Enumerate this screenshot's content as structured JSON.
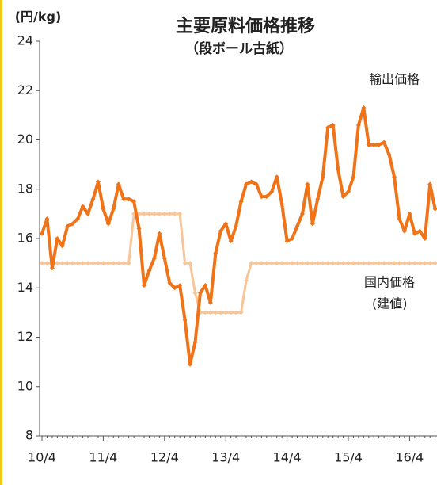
{
  "chart_data": {
    "type": "line",
    "title": "主要原料価格推移",
    "subtitle": "（段ボール古紙）",
    "y_label": "(円/kg)",
    "categories": [
      "10/4",
      null,
      null,
      null,
      null,
      null,
      null,
      null,
      null,
      null,
      null,
      null,
      "11/4",
      null,
      null,
      null,
      null,
      null,
      null,
      null,
      null,
      null,
      null,
      null,
      "12/4",
      null,
      null,
      null,
      null,
      null,
      null,
      null,
      null,
      null,
      null,
      null,
      "13/4",
      null,
      null,
      null,
      null,
      null,
      null,
      null,
      null,
      null,
      null,
      null,
      "14/4",
      null,
      null,
      null,
      null,
      null,
      null,
      null,
      null,
      null,
      null,
      null,
      "15/4",
      null,
      null,
      null,
      null,
      null,
      null,
      null,
      null,
      null,
      null,
      null,
      "16/4",
      null,
      null,
      null,
      null,
      null
    ],
    "series": [
      {
        "name": "輸出価格",
        "color": "#f07318",
        "values": [
          16.2,
          16.8,
          14.8,
          16.0,
          15.7,
          16.5,
          16.6,
          16.8,
          17.3,
          17.0,
          17.6,
          18.3,
          17.2,
          16.6,
          17.2,
          18.2,
          17.6,
          17.6,
          17.5,
          16.4,
          14.1,
          14.7,
          15.2,
          16.2,
          15.2,
          14.2,
          14.0,
          14.1,
          12.7,
          10.9,
          11.8,
          13.8,
          14.1,
          13.4,
          15.4,
          16.3,
          16.6,
          15.9,
          16.5,
          17.5,
          18.2,
          18.3,
          18.2,
          17.7,
          17.7,
          17.9,
          18.5,
          17.4,
          15.9,
          16.0,
          16.5,
          17.0,
          18.2,
          16.6,
          17.6,
          18.5,
          20.5,
          20.6,
          18.8,
          17.7,
          17.9,
          18.5,
          20.6,
          21.3,
          19.8,
          19.8,
          19.8,
          19.9,
          19.4,
          18.5,
          16.8,
          16.3,
          17.0,
          16.2,
          16.3,
          16.0,
          18.2,
          17.2
        ]
      },
      {
        "name": "国内価格",
        "color": "#f8c596",
        "values": [
          15,
          15,
          15,
          15,
          15,
          15,
          15,
          15,
          15,
          15,
          15,
          15,
          15,
          15,
          15,
          15,
          15,
          15,
          17,
          17,
          17,
          17,
          17,
          17,
          17,
          17,
          17,
          17,
          15,
          15,
          13.8,
          13,
          13,
          13,
          13,
          13,
          13,
          13,
          13,
          13,
          14.3,
          15,
          15,
          15,
          15,
          15,
          15,
          15,
          15,
          15,
          15,
          15,
          15,
          15,
          15,
          15,
          15,
          15,
          15,
          15,
          15,
          15,
          15,
          15,
          15,
          15,
          15,
          15,
          15,
          15,
          15,
          15,
          15,
          15,
          15,
          15,
          15,
          15
        ]
      }
    ],
    "annotations": [
      "輸出価格",
      "国内価格",
      "(建値)"
    ],
    "ylim": [
      8,
      24
    ],
    "yticks": [
      8,
      10,
      12,
      14,
      16,
      18,
      20,
      22,
      24
    ]
  }
}
